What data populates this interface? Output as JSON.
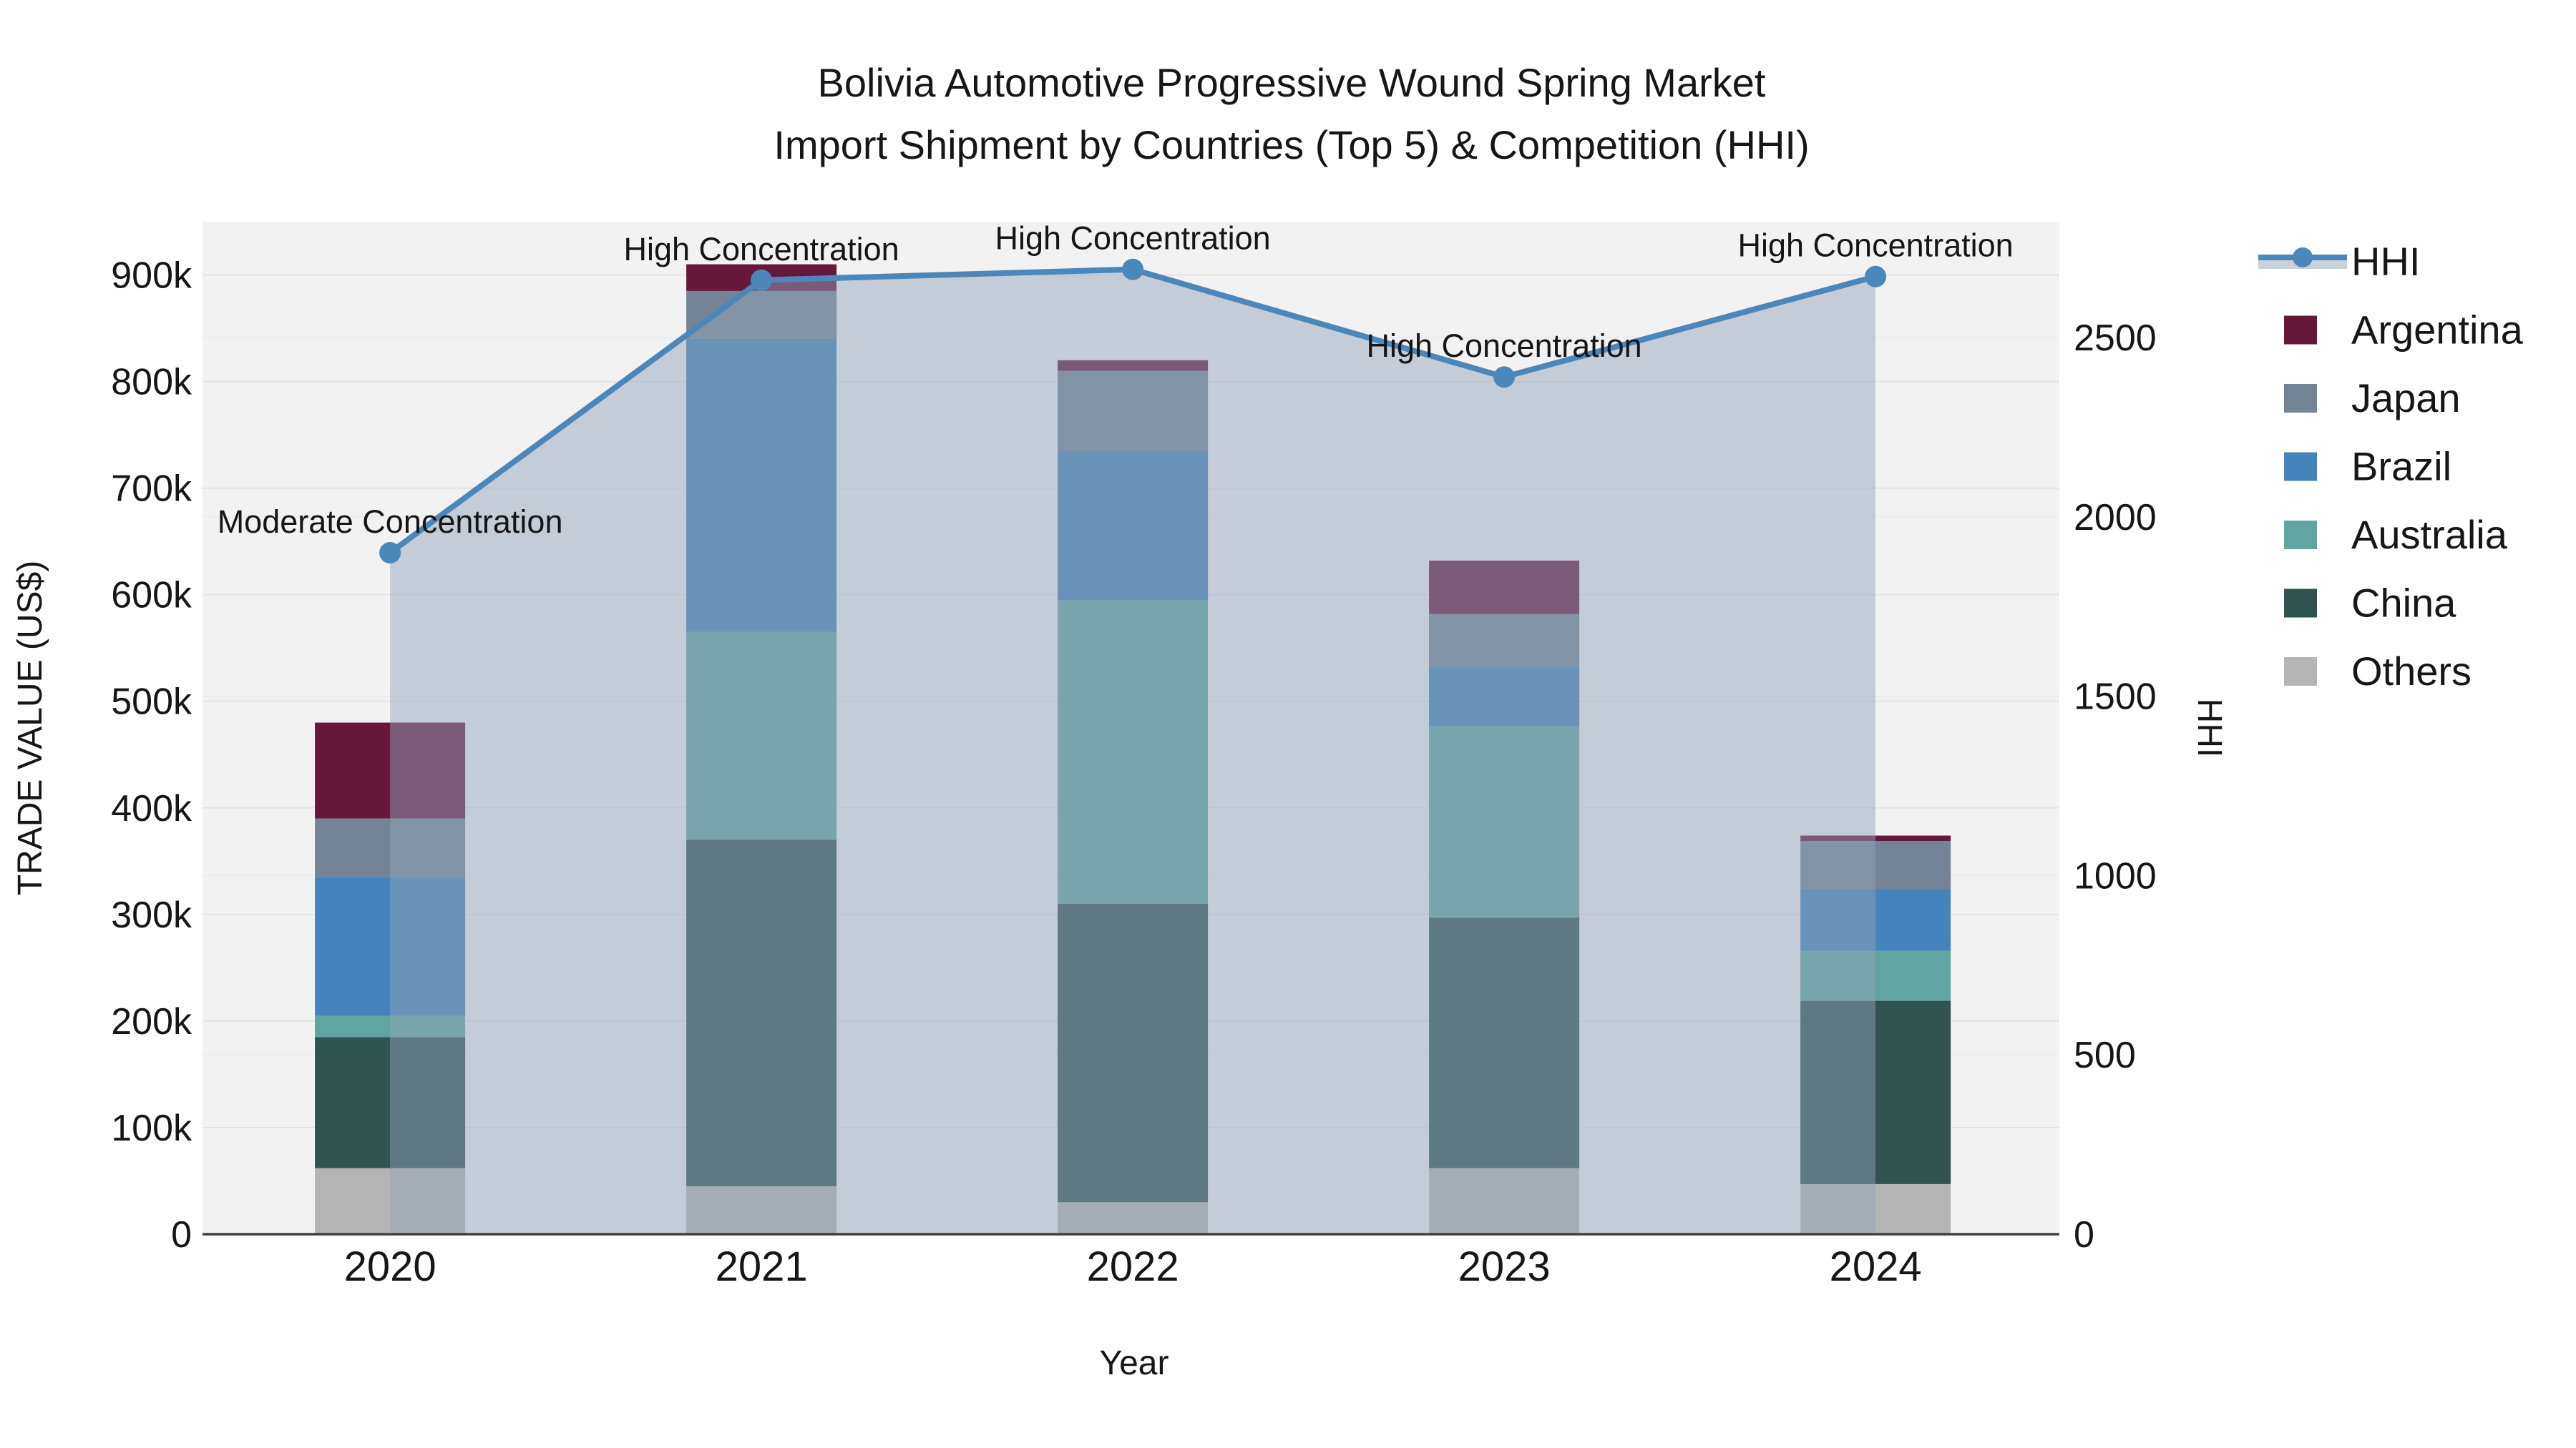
{
  "title": {
    "line1": "Bolivia Automotive Progressive Wound Spring Market",
    "line2": "Import Shipment by Countries (Top 5) & Competition (HHI)"
  },
  "axes": {
    "x_label": "Year",
    "y_left_label": "TRADE VALUE (US$)",
    "y_right_label": "HHI",
    "y_left_ticks": [
      "0",
      "100k",
      "200k",
      "300k",
      "400k",
      "500k",
      "600k",
      "700k",
      "800k",
      "900k"
    ],
    "y_right_ticks": [
      "0",
      "500",
      "1000",
      "1500",
      "2000",
      "2500"
    ]
  },
  "legend": {
    "items": [
      {
        "label": "HHI",
        "type": "line",
        "color": "#4C87B9"
      },
      {
        "label": "Argentina",
        "type": "box",
        "color": "#65183A"
      },
      {
        "label": "Japan",
        "type": "box",
        "color": "#748496"
      },
      {
        "label": "Brazil",
        "type": "box",
        "color": "#4483BB"
      },
      {
        "label": "Australia",
        "type": "box",
        "color": "#60A5A2"
      },
      {
        "label": "China",
        "type": "box",
        "color": "#2F5450"
      },
      {
        "label": "Others",
        "type": "box",
        "color": "#B4B4B4"
      }
    ]
  },
  "colors": {
    "plot_bg": "#F2F2F3",
    "grid_left": "#E4E4E7",
    "grid_right": "#ECECEF",
    "axis_line": "#404040",
    "hhi_line": "#4C87B9",
    "hhi_area_fill": "rgba(147,162,184,0.48)",
    "hhi_legend_band": "#C9D2DC",
    "text": "#161616"
  },
  "chart_data": {
    "type": "bar",
    "subtype": "stacked-bars-with-line-overlay",
    "title": "Bolivia Automotive Progressive Wound Spring Market — Import Shipment by Countries (Top 5) & Competition (HHI)",
    "xlabel": "Year",
    "ylabel_left": "TRADE VALUE (US$)",
    "ylabel_right": "HHI",
    "categories": [
      "2020",
      "2021",
      "2022",
      "2023",
      "2024"
    ],
    "stack_order": [
      "Others",
      "China",
      "Australia",
      "Brazil",
      "Japan",
      "Argentina"
    ],
    "series": [
      {
        "name": "Argentina",
        "color": "#65183A",
        "values": [
          90000,
          25000,
          10000,
          50000,
          5000
        ]
      },
      {
        "name": "Japan",
        "color": "#748496",
        "values": [
          55000,
          45000,
          75000,
          50000,
          45000
        ]
      },
      {
        "name": "Brazil",
        "color": "#4483BB",
        "values": [
          130000,
          275000,
          140000,
          55000,
          58000
        ]
      },
      {
        "name": "Australia",
        "color": "#60A5A2",
        "values": [
          20000,
          195000,
          285000,
          180000,
          47000
        ]
      },
      {
        "name": "China",
        "color": "#2F5450",
        "values": [
          123000,
          325000,
          280000,
          235000,
          172000
        ]
      },
      {
        "name": "Others",
        "color": "#B4B4B4",
        "values": [
          62000,
          45000,
          30000,
          62000,
          47000
        ]
      }
    ],
    "bar_totals": [
      480000,
      910000,
      820000,
      632000,
      374000
    ],
    "line_series": {
      "name": "HHI",
      "color": "#4C87B9",
      "values": [
        1900,
        2660,
        2690,
        2390,
        2670
      ],
      "area_under_line": true
    },
    "annotations": [
      {
        "category": "2020",
        "text": "Moderate Concentration"
      },
      {
        "category": "2021",
        "text": "High Concentration"
      },
      {
        "category": "2022",
        "text": "High Concentration"
      },
      {
        "category": "2023",
        "text": "High Concentration"
      },
      {
        "category": "2024",
        "text": "High Concentration"
      }
    ],
    "y_left": {
      "min": 0,
      "max": 950000,
      "tick_step": 100000
    },
    "y_right": {
      "min": 0,
      "max": 2823,
      "tick_step": 500
    },
    "grid": true,
    "legend_position": "right-outside"
  }
}
